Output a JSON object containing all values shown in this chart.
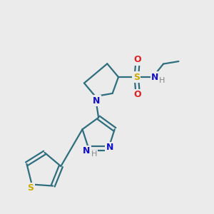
{
  "bg_color": "#ebebeb",
  "bond_color": "#2e6e7e",
  "S_color": "#ccaa00",
  "N_color": "#1010cc",
  "O_color": "#dd2222",
  "H_color": "#888888",
  "line_width": 1.6,
  "fig_size": [
    3.0,
    3.0
  ],
  "dpi": 100,
  "xlim": [
    0,
    10
  ],
  "ylim": [
    0,
    10
  ]
}
